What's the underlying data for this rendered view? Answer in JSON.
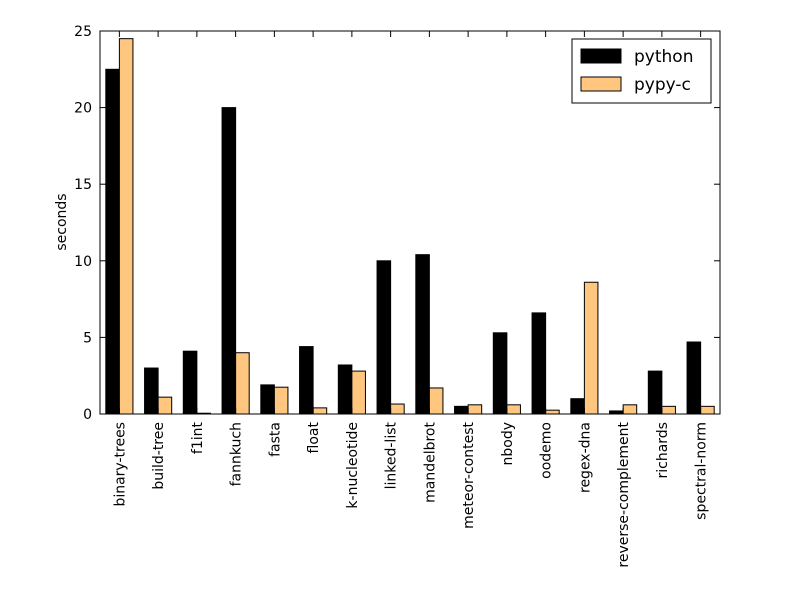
{
  "chart_data": {
    "type": "bar",
    "title": "",
    "xlabel": "",
    "ylabel": "seconds",
    "ylim": [
      0,
      25
    ],
    "yticks": [
      0,
      5,
      10,
      15,
      20,
      25
    ],
    "grid": false,
    "legend_position": "top-right",
    "categories": [
      "binary-trees",
      "build-tree",
      "f1int",
      "fannkuch",
      "fasta",
      "float",
      "k-nucleotide",
      "linked-list",
      "mandelbrot",
      "meteor-contest",
      "nbody",
      "oodemo",
      "regex-dna",
      "reverse-complement",
      "richards",
      "spectral-norm"
    ],
    "series": [
      {
        "name": "python",
        "color": "#000000",
        "values": [
          22.5,
          3.0,
          4.1,
          20.0,
          1.9,
          4.4,
          3.2,
          10.0,
          10.4,
          0.5,
          5.3,
          6.6,
          1.0,
          0.2,
          2.8,
          4.7
        ]
      },
      {
        "name": "pypy-c",
        "color": "#ffc680",
        "values": [
          24.5,
          1.1,
          0.05,
          4.0,
          1.75,
          0.4,
          2.8,
          0.65,
          1.7,
          0.6,
          0.6,
          0.25,
          8.6,
          0.6,
          0.5,
          0.5
        ]
      }
    ]
  }
}
